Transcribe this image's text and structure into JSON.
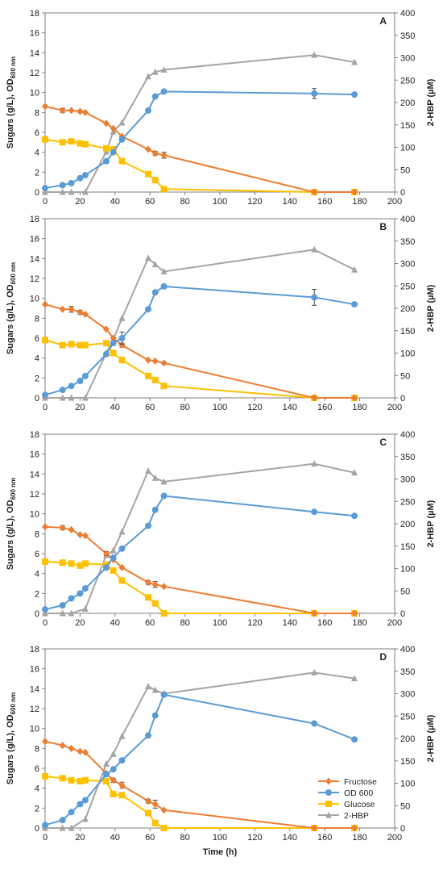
{
  "chart_data": [
    {
      "type": "line",
      "panel": "A",
      "x": [
        0,
        10,
        15,
        20,
        23,
        35,
        39,
        44,
        59,
        63,
        68,
        154,
        177
      ],
      "series": [
        {
          "name": "Fructose",
          "axis": "left",
          "color": "#ED7D31",
          "marker": "diamond",
          "values": [
            8.6,
            8.2,
            8.2,
            8.1,
            8.0,
            6.9,
            6.4,
            5.6,
            4.3,
            3.9,
            3.7,
            0.0,
            0.0
          ],
          "error": [
            0,
            0.2,
            0,
            0.1,
            0,
            0,
            0,
            0,
            0,
            0.2,
            0.3,
            0,
            0
          ]
        },
        {
          "name": "OD 600",
          "axis": "left",
          "color": "#5B9BD5",
          "marker": "circle",
          "values": [
            0.4,
            0.7,
            0.9,
            1.4,
            1.7,
            3.1,
            4.0,
            5.3,
            8.2,
            9.6,
            10.1,
            9.9,
            9.8
          ],
          "error": [
            0,
            0,
            0,
            0,
            0,
            0,
            0,
            0,
            0,
            0,
            0,
            0.5,
            0
          ]
        },
        {
          "name": "Glucose",
          "axis": "left",
          "color": "#FFC000",
          "marker": "square",
          "values": [
            5.3,
            5.0,
            5.1,
            4.9,
            4.8,
            4.4,
            4.3,
            3.1,
            1.8,
            1.2,
            0.3,
            0.0,
            0.0
          ]
        },
        {
          "name": "2-HBP",
          "axis": "right",
          "color": "#A5A5A5",
          "marker": "triangle",
          "x": [
            0,
            10,
            15,
            23,
            35,
            39,
            44,
            59,
            63,
            68,
            154,
            177
          ],
          "values": [
            0,
            0,
            0,
            0,
            90,
            135,
            155,
            258,
            268,
            273,
            306,
            290
          ]
        }
      ],
      "xlim": [
        0,
        200
      ],
      "ylim": [
        0,
        18
      ],
      "y2lim": [
        0,
        400
      ]
    },
    {
      "type": "line",
      "panel": "B",
      "x": [
        0,
        10,
        15,
        20,
        23,
        35,
        39,
        44,
        59,
        63,
        68,
        154,
        177
      ],
      "series": [
        {
          "name": "Fructose",
          "axis": "left",
          "color": "#ED7D31",
          "marker": "diamond",
          "values": [
            9.4,
            8.9,
            8.9,
            8.6,
            8.4,
            6.9,
            6.0,
            5.3,
            3.8,
            3.7,
            3.5,
            0.0,
            0.0
          ],
          "error": [
            0,
            0,
            0.3,
            0.2,
            0,
            0,
            0,
            0.2,
            0,
            0,
            0.1,
            0,
            0
          ]
        },
        {
          "name": "OD 600",
          "axis": "left",
          "color": "#5B9BD5",
          "marker": "circle",
          "values": [
            0.3,
            0.8,
            1.2,
            1.7,
            2.2,
            4.4,
            5.5,
            6.0,
            8.9,
            10.6,
            11.2,
            10.1,
            9.4
          ],
          "error": [
            0,
            0,
            0,
            0,
            0,
            0,
            0,
            0.6,
            0,
            0,
            0,
            0.8,
            0
          ]
        },
        {
          "name": "Glucose",
          "axis": "left",
          "color": "#FFC000",
          "marker": "square",
          "values": [
            5.8,
            5.3,
            5.4,
            5.3,
            5.3,
            5.5,
            4.5,
            3.8,
            2.2,
            1.8,
            1.2,
            0.0,
            0.0
          ]
        },
        {
          "name": "2-HBP",
          "axis": "right",
          "color": "#A5A5A5",
          "marker": "triangle",
          "x": [
            0,
            10,
            15,
            23,
            35,
            39,
            44,
            59,
            63,
            68,
            154,
            177
          ],
          "values": [
            0,
            0,
            0,
            0,
            100,
            130,
            178,
            312,
            298,
            282,
            331,
            286
          ]
        }
      ],
      "xlim": [
        0,
        200
      ],
      "ylim": [
        0,
        18
      ],
      "y2lim": [
        0,
        400
      ]
    },
    {
      "type": "line",
      "panel": "C",
      "x": [
        0,
        10,
        15,
        20,
        23,
        35,
        39,
        44,
        59,
        63,
        68,
        154,
        177
      ],
      "series": [
        {
          "name": "Fructose",
          "axis": "left",
          "color": "#ED7D31",
          "marker": "diamond",
          "values": [
            8.7,
            8.6,
            8.4,
            7.9,
            7.8,
            6.0,
            5.4,
            4.6,
            3.1,
            2.9,
            2.7,
            0.0,
            0.0
          ],
          "error": [
            0,
            0.2,
            0.1,
            0,
            0,
            0.2,
            0,
            0,
            0.2,
            0.3,
            0,
            0,
            0
          ]
        },
        {
          "name": "OD 600",
          "axis": "left",
          "color": "#5B9BD5",
          "marker": "circle",
          "values": [
            0.4,
            0.8,
            1.5,
            2.0,
            2.5,
            4.6,
            5.6,
            6.5,
            8.8,
            10.4,
            11.8,
            10.2,
            9.8
          ]
        },
        {
          "name": "Glucose",
          "axis": "left",
          "color": "#FFC000",
          "marker": "square",
          "values": [
            5.2,
            5.1,
            5.0,
            4.8,
            5.0,
            4.9,
            4.3,
            3.3,
            1.6,
            1.0,
            0.0,
            0.0,
            0.0
          ]
        },
        {
          "name": "2-HBP",
          "axis": "right",
          "color": "#A5A5A5",
          "marker": "triangle",
          "x": [
            0,
            10,
            15,
            23,
            35,
            39,
            44,
            59,
            63,
            68,
            154,
            177
          ],
          "values": [
            0,
            0,
            0,
            10,
            130,
            140,
            182,
            318,
            302,
            294,
            334,
            314
          ]
        }
      ],
      "xlim": [
        0,
        200
      ],
      "ylim": [
        0,
        18
      ],
      "y2lim": [
        0,
        400
      ]
    },
    {
      "type": "line",
      "panel": "D",
      "x": [
        0,
        10,
        15,
        20,
        23,
        35,
        39,
        44,
        59,
        63,
        68,
        154,
        177
      ],
      "series": [
        {
          "name": "Fructose",
          "axis": "left",
          "color": "#ED7D31",
          "marker": "diamond",
          "values": [
            8.7,
            8.3,
            8.0,
            7.7,
            7.6,
            5.5,
            4.8,
            4.3,
            2.7,
            2.4,
            1.8,
            0.0,
            0.0
          ],
          "error": [
            0,
            0,
            0,
            0,
            0,
            0,
            0.2,
            0.3,
            0.2,
            0.4,
            0,
            0,
            0
          ]
        },
        {
          "name": "OD 600",
          "axis": "left",
          "color": "#5B9BD5",
          "marker": "circle",
          "values": [
            0.3,
            0.8,
            1.6,
            2.4,
            2.8,
            5.4,
            5.9,
            6.8,
            9.3,
            11.3,
            13.4,
            10.5,
            8.9
          ]
        },
        {
          "name": "Glucose",
          "axis": "left",
          "color": "#FFC000",
          "marker": "square",
          "values": [
            5.2,
            5.0,
            4.8,
            4.7,
            4.8,
            4.7,
            3.4,
            3.3,
            1.5,
            0.5,
            0.0,
            0.0,
            0.0
          ]
        },
        {
          "name": "2-HBP",
          "axis": "right",
          "color": "#A5A5A5",
          "marker": "triangle",
          "x": [
            0,
            10,
            15,
            23,
            35,
            39,
            44,
            59,
            63,
            68,
            154,
            177
          ],
          "values": [
            0,
            0,
            0,
            20,
            143,
            165,
            205,
            316,
            308,
            300,
            347,
            334
          ]
        }
      ],
      "xlim": [
        0,
        200
      ],
      "ylim": [
        0,
        18
      ],
      "y2lim": [
        0,
        400
      ]
    }
  ],
  "axes": {
    "left_title_main": "Sugars (g/L), OD",
    "left_title_sub": "600 nm",
    "right_title": "2-HBP (µM)",
    "x_title": "Time (h)",
    "x_ticks": [
      0,
      20,
      40,
      60,
      80,
      100,
      120,
      140,
      160,
      180,
      200
    ],
    "y_ticks": [
      0,
      2,
      4,
      6,
      8,
      10,
      12,
      14,
      16,
      18
    ],
    "y2_ticks": [
      0,
      50,
      100,
      150,
      200,
      250,
      300,
      350,
      400
    ]
  },
  "legend": {
    "position": "bottom-right of panel D",
    "entries": [
      "Fructose",
      "OD 600",
      "Glucose",
      "2-HBP"
    ]
  }
}
